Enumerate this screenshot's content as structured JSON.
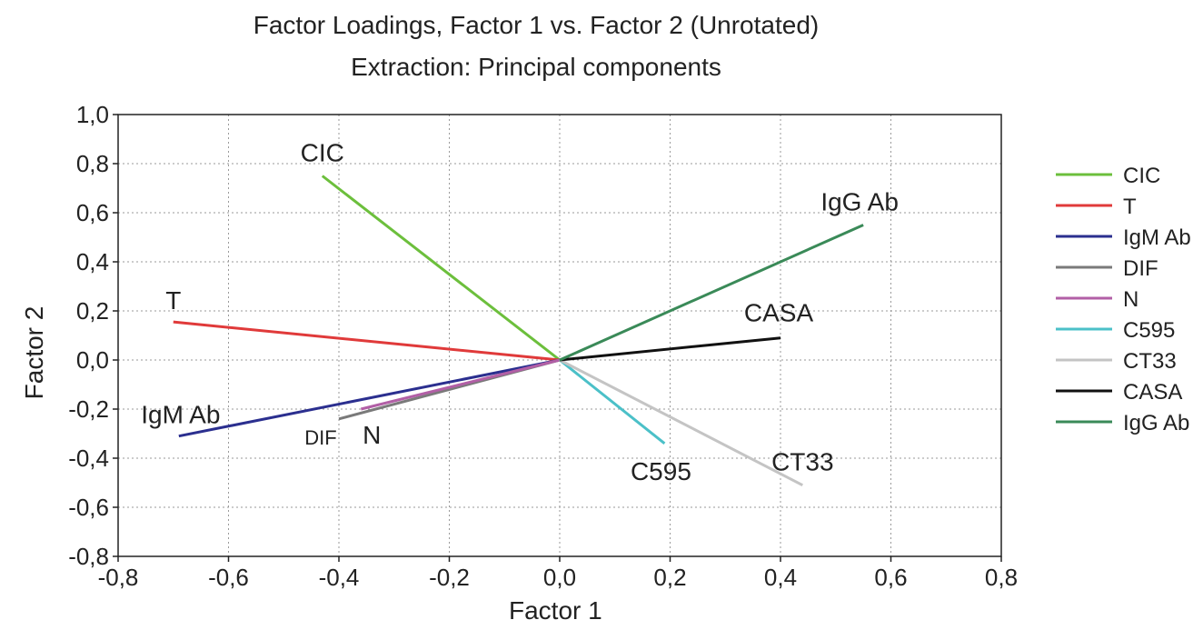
{
  "chart_data": {
    "type": "line",
    "title": "Factor Loadings, Factor 1 vs. Factor 2 (Unrotated)",
    "subtitle": "Extraction: Principal components",
    "xlabel": "Factor 1",
    "ylabel": "Factor 2",
    "xlim": [
      -0.8,
      0.8
    ],
    "ylim": [
      -0.8,
      1.0
    ],
    "x_ticks": [
      "-0,8",
      "-0,6",
      "-0,4",
      "-0,2",
      "0,0",
      "0,2",
      "0,4",
      "0,6",
      "0,8"
    ],
    "y_ticks": [
      "1,0",
      "0,8",
      "0,6",
      "0,4",
      "0,2",
      "0,0",
      "-0,2",
      "-0,4",
      "-0,6",
      "-0,8"
    ],
    "grid": true,
    "legend_position": "right",
    "series": [
      {
        "name": "CIC",
        "color": "#6cbf3c",
        "x": [
          0,
          -0.43
        ],
        "y": [
          0,
          0.75
        ],
        "label": "CIC"
      },
      {
        "name": "T",
        "color": "#e03a3a",
        "x": [
          0,
          -0.7
        ],
        "y": [
          0,
          0.155
        ],
        "label": "T"
      },
      {
        "name": "IgM Ab",
        "color": "#2b2f8f",
        "x": [
          0,
          -0.69
        ],
        "y": [
          0,
          -0.31
        ],
        "label": "IgM Ab"
      },
      {
        "name": "DIF",
        "color": "#7a7a7a",
        "x": [
          0,
          -0.4
        ],
        "y": [
          0,
          -0.24
        ],
        "label": "DIF"
      },
      {
        "name": "N",
        "color": "#b25fa6",
        "x": [
          0,
          -0.36
        ],
        "y": [
          0,
          -0.2
        ],
        "label": "N"
      },
      {
        "name": "C595",
        "color": "#4bc0c8",
        "x": [
          0,
          0.19
        ],
        "y": [
          0,
          -0.34
        ],
        "label": "C595"
      },
      {
        "name": "CT33",
        "color": "#c4c4c4",
        "x": [
          0,
          0.44
        ],
        "y": [
          0,
          -0.51
        ],
        "label": "CT33"
      },
      {
        "name": "CASA",
        "color": "#111111",
        "x": [
          0,
          0.4
        ],
        "y": [
          0,
          0.09
        ],
        "label": "CASA"
      },
      {
        "name": "IgG Ab",
        "color": "#3a8a58",
        "x": [
          0,
          0.55
        ],
        "y": [
          0,
          0.55
        ],
        "label": "IgG Ab"
      }
    ]
  }
}
